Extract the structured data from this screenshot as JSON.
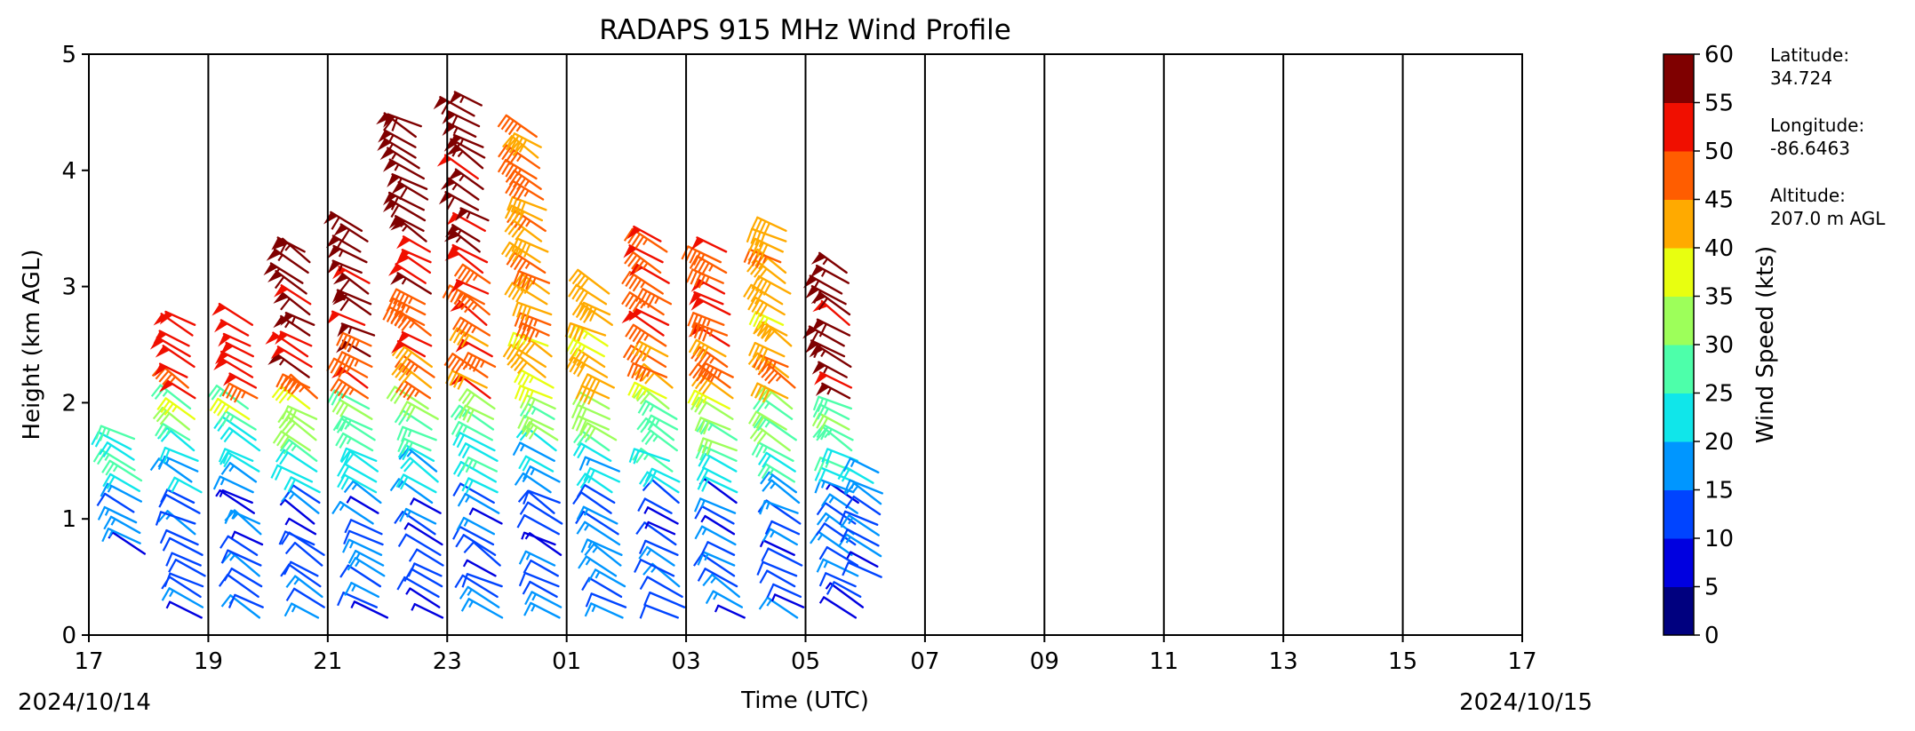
{
  "chart_data": {
    "type": "wind_barb_profile",
    "title": "RADAPS 915 MHz Wind Profile",
    "xlabel": "Time (UTC)",
    "ylabel": "Height (km AGL)",
    "x_tick_labels": [
      "17",
      "19",
      "21",
      "23",
      "01",
      "03",
      "05",
      "07",
      "09",
      "11",
      "13",
      "15",
      "17"
    ],
    "x_range_hours": [
      0,
      24
    ],
    "ylim": [
      0,
      5
    ],
    "y_ticks": [
      0,
      1,
      2,
      3,
      4,
      5
    ],
    "start_date_label": "2024/10/14",
    "end_date_label": "2024/10/15",
    "vertical_gridlines": true,
    "colorbar": {
      "label": "Wind Speed (kts)",
      "ticks": [
        0,
        5,
        10,
        15,
        20,
        25,
        30,
        35,
        40,
        45,
        50,
        55,
        60
      ],
      "colors": [
        "#00007f",
        "#0000e0",
        "#0044ff",
        "#0096ff",
        "#10e6ea",
        "#4dffaa",
        "#9dff5a",
        "#e8ff10",
        "#ffaa00",
        "#ff5d00",
        "#f00f00",
        "#7f0000"
      ]
    },
    "site_info": [
      {
        "label": "Latitude:",
        "value": "34.724"
      },
      {
        "label": "Longitude:",
        "value": "-86.6463"
      },
      {
        "label": "Altitude:",
        "value": "207.0 m AGL"
      }
    ],
    "profiles": [
      {
        "time_h": 0.0,
        "max_km": 1.7,
        "min_km": 0.7,
        "top_speed": 28
      },
      {
        "time_h": 1.0,
        "max_km": 2.7,
        "min_km": 0.15,
        "top_speed": 55
      },
      {
        "time_h": 2.0,
        "max_km": 2.7,
        "min_km": 0.15,
        "top_speed": 55
      },
      {
        "time_h": 3.0,
        "max_km": 3.3,
        "min_km": 0.15,
        "top_speed": 62
      },
      {
        "time_h": 4.0,
        "max_km": 3.5,
        "min_km": 0.15,
        "top_speed": 62
      },
      {
        "time_h": 5.0,
        "max_km": 4.4,
        "min_km": 0.15,
        "top_speed": 62
      },
      {
        "time_h": 6.0,
        "max_km": 4.6,
        "min_km": 0.15,
        "top_speed": 62
      },
      {
        "time_h": 7.0,
        "max_km": 4.35,
        "min_km": 0.15,
        "top_speed": 47
      },
      {
        "time_h": 8.0,
        "max_km": 3.0,
        "min_km": 0.15,
        "top_speed": 45
      },
      {
        "time_h": 9.0,
        "max_km": 3.4,
        "min_km": 0.15,
        "top_speed": 52
      },
      {
        "time_h": 10.0,
        "max_km": 3.35,
        "min_km": 0.15,
        "top_speed": 52
      },
      {
        "time_h": 11.0,
        "max_km": 3.55,
        "min_km": 0.15,
        "top_speed": 46
      },
      {
        "time_h": 12.0,
        "max_km": 3.15,
        "min_km": 0.15,
        "top_speed": 62
      },
      {
        "time_h": 12.4,
        "max_km": 1.45,
        "min_km": 0.5,
        "top_speed": 22
      }
    ]
  }
}
